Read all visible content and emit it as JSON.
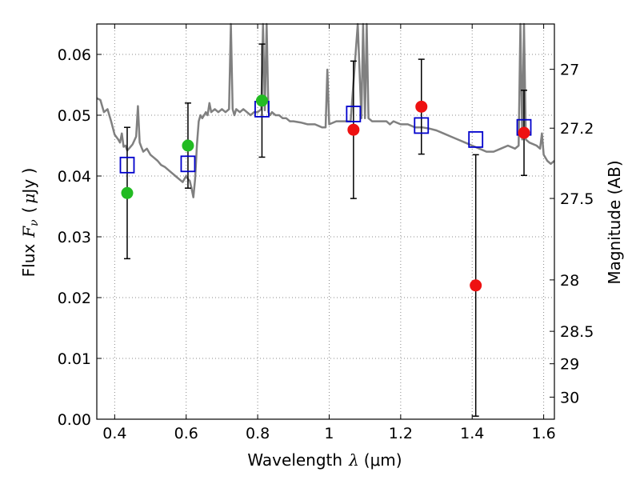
{
  "chart_data": {
    "type": "scatter",
    "xlabel": "Wavelength",
    "xlabel_symbol": "λ",
    "xlabel_unit": "(μm)",
    "ylabel": "Flux",
    "ylabel_symbol": "F",
    "ylabel_subscript": "ν",
    "ylabel_unit_open": "(",
    "ylabel_unit_mu": "μ",
    "ylabel_unit_rest": "Jy )",
    "y2label": "Magnitude (AB)",
    "xlim": [
      0.35,
      1.63
    ],
    "ylim": [
      0.0,
      0.065
    ],
    "grid": true,
    "grid_style": "dotted",
    "x_ticks": [
      0.4,
      0.6,
      0.8,
      1.0,
      1.2,
      1.4,
      1.6
    ],
    "x_tick_labels": [
      "0.4",
      "0.6",
      "0.8",
      "1",
      "1.2",
      "1.4",
      "1.6"
    ],
    "y_ticks": [
      0.0,
      0.01,
      0.02,
      0.03,
      0.04,
      0.05,
      0.06
    ],
    "y_tick_labels": [
      "0.00",
      "0.01",
      "0.02",
      "0.03",
      "0.04",
      "0.05",
      "0.06"
    ],
    "y2_ticks": [
      {
        "label": "27",
        "mag": 27.0
      },
      {
        "label": "27.2",
        "mag": 27.2
      },
      {
        "label": "27.5",
        "mag": 27.5
      },
      {
        "label": "28",
        "mag": 28.0
      },
      {
        "label": "28.5",
        "mag": 28.5
      },
      {
        "label": "29",
        "mag": 29.0
      },
      {
        "label": "30",
        "mag": 30.0
      }
    ],
    "colors": {
      "model_spectrum": "#808080",
      "model_photometry": "#0000cc",
      "observed_optical": "#22bb22",
      "observed_nir": "#ee1111",
      "errorbar": "#000000",
      "grid": "#888888"
    },
    "series": [
      {
        "kind": "spectrum",
        "x": [
          0.35,
          0.36,
          0.37,
          0.38,
          0.39,
          0.4,
          0.41,
          0.415,
          0.42,
          0.425,
          0.43,
          0.435,
          0.44,
          0.45,
          0.46,
          0.465,
          0.47,
          0.475,
          0.48,
          0.49,
          0.5,
          0.51,
          0.52,
          0.53,
          0.54,
          0.55,
          0.56,
          0.57,
          0.58,
          0.59,
          0.6,
          0.605,
          0.61,
          0.615,
          0.62,
          0.625,
          0.63,
          0.635,
          0.64,
          0.645,
          0.65,
          0.655,
          0.66,
          0.665,
          0.67,
          0.68,
          0.69,
          0.7,
          0.71,
          0.72,
          0.725,
          0.73,
          0.735,
          0.74,
          0.75,
          0.76,
          0.77,
          0.78,
          0.79,
          0.8,
          0.81,
          0.815,
          0.82,
          0.825,
          0.83,
          0.835,
          0.84,
          0.85,
          0.86,
          0.87,
          0.88,
          0.89,
          0.9,
          0.92,
          0.94,
          0.96,
          0.98,
          0.99,
          0.995,
          1.0,
          1.02,
          1.04,
          1.06,
          1.08,
          1.09,
          1.095,
          1.1,
          1.105,
          1.11,
          1.12,
          1.14,
          1.16,
          1.17,
          1.18,
          1.2,
          1.22,
          1.24,
          1.26,
          1.28,
          1.3,
          1.32,
          1.34,
          1.36,
          1.38,
          1.4,
          1.42,
          1.44,
          1.46,
          1.48,
          1.5,
          1.52,
          1.53,
          1.535,
          1.54,
          1.545,
          1.55,
          1.56,
          1.58,
          1.59,
          1.595,
          1.6,
          1.61,
          1.62,
          1.63
        ],
        "y": [
          0.0528,
          0.0525,
          0.0505,
          0.051,
          0.049,
          0.0468,
          0.046,
          0.0455,
          0.047,
          0.0448,
          0.045,
          0.0442,
          0.0445,
          0.0452,
          0.0465,
          0.0515,
          0.0455,
          0.0447,
          0.044,
          0.0445,
          0.0435,
          0.043,
          0.0425,
          0.0418,
          0.0415,
          0.041,
          0.0405,
          0.04,
          0.0395,
          0.039,
          0.04,
          0.0395,
          0.0392,
          0.038,
          0.0365,
          0.0395,
          0.045,
          0.049,
          0.05,
          0.0495,
          0.05,
          0.0505,
          0.05,
          0.052,
          0.0505,
          0.051,
          0.0505,
          0.051,
          0.0505,
          0.051,
          0.065,
          0.051,
          0.05,
          0.051,
          0.0505,
          0.051,
          0.0505,
          0.05,
          0.0505,
          0.0505,
          0.051,
          0.065,
          0.0508,
          0.065,
          0.0505,
          0.05,
          0.0505,
          0.05,
          0.05,
          0.0495,
          0.0495,
          0.049,
          0.049,
          0.0488,
          0.0485,
          0.0485,
          0.048,
          0.048,
          0.0575,
          0.0485,
          0.049,
          0.049,
          0.049,
          0.065,
          0.0495,
          0.065,
          0.0495,
          0.065,
          0.0495,
          0.049,
          0.049,
          0.049,
          0.0485,
          0.049,
          0.0485,
          0.0485,
          0.048,
          0.048,
          0.0478,
          0.0475,
          0.047,
          0.0465,
          0.046,
          0.0455,
          0.045,
          0.0445,
          0.044,
          0.044,
          0.0445,
          0.045,
          0.0445,
          0.045,
          0.065,
          0.046,
          0.065,
          0.046,
          0.0455,
          0.045,
          0.0445,
          0.047,
          0.0435,
          0.0425,
          0.042,
          0.0425
        ]
      },
      {
        "kind": "model_photometry",
        "x": [
          0.435,
          0.605,
          0.812,
          1.068,
          1.258,
          1.41,
          1.545
        ],
        "y": [
          0.0418,
          0.042,
          0.051,
          0.0502,
          0.0483,
          0.046,
          0.048
        ]
      },
      {
        "kind": "observed_optical",
        "x": [
          0.435,
          0.605,
          0.812
        ],
        "y": [
          0.0372,
          0.045,
          0.0524
        ],
        "err": [
          0.0108,
          0.007,
          0.0093
        ]
      },
      {
        "kind": "observed_nir",
        "x": [
          1.068,
          1.258,
          1.41,
          1.545
        ],
        "y": [
          0.0476,
          0.0514,
          0.022,
          0.0471
        ],
        "err": [
          0.0113,
          0.0078,
          0.0215,
          0.007
        ]
      }
    ]
  }
}
